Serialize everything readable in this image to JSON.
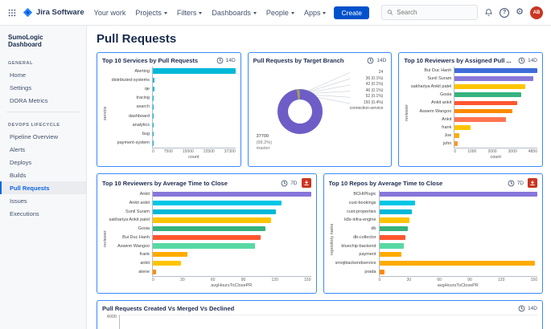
{
  "colors": {
    "accent": "#0052CC",
    "card_border": "#388BFF",
    "download_button": "#CA3521",
    "avatar_bg": "#CA3521",
    "selected_nav": "#0C66E4"
  },
  "icons": {
    "help": "?",
    "gear": "⚙"
  },
  "navbar": {
    "app_name": "Jira Software",
    "menu_items": [
      {
        "label": "Your work",
        "caret": false
      },
      {
        "label": "Projects",
        "caret": true
      },
      {
        "label": "Filters",
        "caret": true
      },
      {
        "label": "Dashboards",
        "caret": true
      },
      {
        "label": "People",
        "caret": true
      },
      {
        "label": "Apps",
        "caret": true
      }
    ],
    "create_label": "Create",
    "search_placeholder": "Search",
    "avatar_initials": "AB"
  },
  "sidebar": {
    "title": "SumoLogic Dashboard",
    "selected_item": "Pull Requests",
    "sections": [
      {
        "label": "GENERAL",
        "items": [
          "Home",
          "Settings"
        ],
        "divider_after": false
      },
      {
        "label": "",
        "items": [
          "DORA Metrics"
        ],
        "divider_after": true
      },
      {
        "label": "DEVOPS LIFECYCLE",
        "items": [
          "Pipeline Overview",
          "Alerts",
          "Deploys",
          "Builds",
          "Pull Requests",
          "Issues",
          "Executions"
        ],
        "divider_after": false
      }
    ]
  },
  "page": {
    "title": "Pull Requests"
  },
  "chart_data": [
    {
      "type": "bar",
      "title": "Top 10 Services by Pull Requests",
      "range": "14D",
      "categories": [
        "Alerting",
        "distributed-systems",
        "qe",
        "tracing",
        "search",
        "dashboard",
        "analytics",
        "bug",
        "payment-system"
      ],
      "values": [
        37300,
        700,
        560,
        480,
        430,
        400,
        380,
        340,
        300
      ],
      "colors": [
        "#00B8D9",
        "#00B8D9",
        "#00B8D9",
        "#00B8D9",
        "#00B8D9",
        "#00B8D9",
        "#00B8D9",
        "#00B8D9",
        "#00B8D9"
      ],
      "xlabel": "count",
      "ylabel": "service",
      "xticks": [
        "0",
        "7500",
        "15000",
        "22500",
        "37300"
      ],
      "xlim": [
        0,
        37300
      ],
      "legend": "off"
    },
    {
      "type": "pie",
      "title": "Pull Requests by Target Branch",
      "range": "14D",
      "slices": [
        {
          "label": "master",
          "value": 37700,
          "pct": 99.2,
          "color": "#6E5DC6"
        },
        {
          "label": "connection-service",
          "value": 150,
          "pct": 0.4,
          "color": "#FFC400"
        },
        {
          "label": "",
          "value": 52,
          "pct": 0.1,
          "color": "#FF8B00"
        },
        {
          "label": "",
          "value": 46,
          "pct": 0.1,
          "color": "#36B37E"
        },
        {
          "label": "",
          "value": 42,
          "pct": 0.1,
          "color": "#00B8D9"
        },
        {
          "label": "",
          "value": 36,
          "pct": 0.1,
          "color": "#FF5630"
        },
        {
          "label": "",
          "value": 24,
          "pct": 0.1,
          "color": "#998DD9"
        }
      ],
      "annotations": [
        "24",
        "36 (0.1%)",
        "42 (0.1%)",
        "46 (0.1%)",
        "52 (0.1%)",
        "150 (0.4%)",
        "connection-service"
      ],
      "center_label": {
        "value": "37700",
        "pct": "(99.2%)",
        "name": "master"
      }
    },
    {
      "type": "bar",
      "title": "Top 10 Reviewers by Assigned Pull ...",
      "range": "14D",
      "categories": [
        "Bui Duc Hanh",
        "Sunil Suram",
        "sakhariya Ankit patel",
        "Gosia",
        "Ankit ankit",
        "Aswem Wangoo",
        "Ankit",
        "frank",
        "Joe",
        "john"
      ],
      "values": [
        4850,
        4600,
        4150,
        3900,
        3650,
        3400,
        3000,
        950,
        280,
        180
      ],
      "colors": [
        "#3E6DD8",
        "#8777D9",
        "#FFC400",
        "#36B37E",
        "#FF5630",
        "#FF8B00",
        "#FF7452",
        "#FFC400",
        "#FFAB00",
        "#FF991F"
      ],
      "xlabel": "count",
      "ylabel": "reviewer",
      "xticks": [
        "0",
        "1000",
        "2000",
        "3000",
        "4850"
      ],
      "xlim": [
        0,
        4850
      ],
      "legend": "off"
    },
    {
      "type": "bar",
      "title": "Top 10 Reviewers by Average Time to Close",
      "range": "7D",
      "download": true,
      "categories": [
        "Ankit",
        "Ankit ankit",
        "Sunil Suram",
        "sakhariya Ankit patel",
        "Gosia",
        "Bui Duc Hanh",
        "Aswem Wangoo",
        "frank",
        "ankit",
        "atene"
      ],
      "values": [
        150,
        122,
        117,
        112,
        107,
        102,
        97,
        33,
        27,
        3
      ],
      "colors": [
        "#8777D9",
        "#00C7E6",
        "#00B8D9",
        "#FFC400",
        "#36B37E",
        "#FF5630",
        "#57D9A3",
        "#FFAB00",
        "#FFC400",
        "#FF8B00"
      ],
      "xlabel": "avgHoursToClosePR",
      "ylabel": "reviewer",
      "xticks": [
        "0",
        "30",
        "60",
        "90",
        "120",
        "150"
      ],
      "xlim": [
        0,
        150
      ],
      "legend": "off"
    },
    {
      "type": "bar",
      "title": "Top 10 Repos by Average Time to Close",
      "range": "7D",
      "download": true,
      "categories": [
        "BCHIPlogic",
        "cust-bookings",
        "cust-properties",
        "k8s-infra-engine",
        "db",
        "db-collector",
        "bluechip-backend",
        "payment",
        "smojibackendservice",
        "prada"
      ],
      "values": [
        150,
        34,
        31,
        29,
        27,
        25,
        23,
        21,
        148,
        5
      ],
      "colors": [
        "#8777D9",
        "#00C7E6",
        "#00B8D9",
        "#FFC400",
        "#36B37E",
        "#FF5630",
        "#57D9A3",
        "#FFAB00",
        "#FFAB00",
        "#FF8B00"
      ],
      "xlabel": "avgHoursToClosePR",
      "ylabel": "repository name",
      "xticks": [
        "0",
        "30",
        "60",
        "90",
        "120",
        "150"
      ],
      "xlim": [
        0,
        150
      ],
      "legend": "off"
    },
    {
      "type": "line",
      "title": "Pull Requests Created Vs Merged Vs Declined",
      "range": "14D",
      "visible_yticks": [
        "4000"
      ]
    }
  ]
}
